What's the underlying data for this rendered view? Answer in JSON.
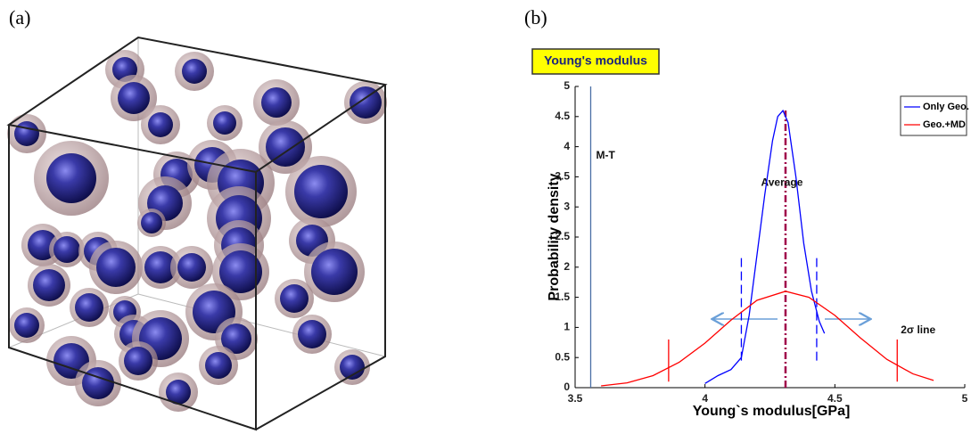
{
  "panels": [
    "(a)",
    "(b)"
  ],
  "chart_data": {
    "type": "line",
    "title": "Young's modulus",
    "xlabel": "Young`s modulus[GPa]",
    "ylabel": "Probability density",
    "xlim": [
      3.5,
      5
    ],
    "ylim": [
      0,
      5
    ],
    "xticks": [
      3.5,
      4,
      4.5,
      5
    ],
    "yticks": [
      0,
      0.5,
      1,
      1.5,
      2,
      2.5,
      3,
      3.5,
      4,
      4.5,
      5
    ],
    "legend": "top-right",
    "series": [
      {
        "name": "Only Geo.",
        "color": "#0000ff",
        "x": [
          4.0,
          4.05,
          4.1,
          4.14,
          4.17,
          4.2,
          4.23,
          4.26,
          4.28,
          4.3,
          4.32,
          4.35,
          4.38,
          4.41,
          4.44,
          4.46
        ],
        "values": [
          0.07,
          0.2,
          0.3,
          0.5,
          1.2,
          2.2,
          3.2,
          4.1,
          4.5,
          4.6,
          4.4,
          3.5,
          2.4,
          1.6,
          1.1,
          0.9
        ]
      },
      {
        "name": "Geo.+MD",
        "color": "#ff0000",
        "x": [
          3.6,
          3.7,
          3.8,
          3.9,
          4.0,
          4.1,
          4.2,
          4.31,
          4.4,
          4.5,
          4.6,
          4.7,
          4.8,
          4.88
        ],
        "values": [
          0.03,
          0.08,
          0.2,
          0.42,
          0.74,
          1.12,
          1.45,
          1.6,
          1.5,
          1.2,
          0.82,
          0.47,
          0.23,
          0.12
        ]
      }
    ],
    "reference_lines": [
      {
        "label": "M-T",
        "x": 3.56,
        "ymin": 0,
        "ymax": 5,
        "color": "#4a6fa5",
        "style": "solid"
      },
      {
        "label": "Average",
        "x": 4.31,
        "ymin": 0,
        "ymax": 4.6,
        "color": "#a0004a",
        "style": "dashdot"
      },
      {
        "x": 4.14,
        "ymin": 0.45,
        "ymax": 2.2,
        "color": "#0000ff",
        "style": "dashed"
      },
      {
        "x": 4.43,
        "ymin": 0.45,
        "ymax": 2.2,
        "color": "#0000ff",
        "style": "dashed"
      },
      {
        "x": 3.86,
        "ymin": 0.1,
        "ymax": 0.8,
        "color": "#ff0000",
        "style": "solid"
      },
      {
        "label": "2σ line",
        "x": 4.74,
        "ymin": 0.1,
        "ymax": 0.8,
        "color": "#ff0000",
        "style": "solid"
      }
    ]
  }
}
